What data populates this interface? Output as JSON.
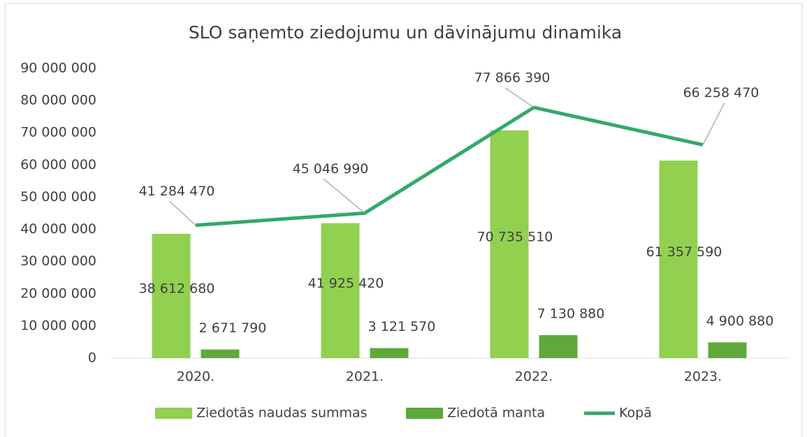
{
  "chart_data": {
    "type": "bar",
    "title": "SLO saņemto ziedojumu un dāvinājumu dinamika",
    "categories": [
      "2020.",
      "2021.",
      "2022.",
      "2023."
    ],
    "series": [
      {
        "name": "Ziedotās naudas summas",
        "color": "#92d050",
        "values": [
          38612680,
          41925420,
          70735510,
          61357590
        ],
        "value_labels": [
          "38 612 680",
          "41 925 420",
          "70 735 510",
          "61 357 590"
        ]
      },
      {
        "name": "Ziedotā manta",
        "color": "#5fa83c",
        "values": [
          2671790,
          3121570,
          7130880,
          4900880
        ],
        "value_labels": [
          "2 671 790",
          "3 121 570",
          "7 130 880",
          "4 900 880"
        ]
      },
      {
        "name": "Kopā",
        "type": "line",
        "color": "#33a86a",
        "values": [
          41284470,
          45046990,
          77866390,
          66258470
        ],
        "value_labels": [
          "41 284 470",
          "45 046 990",
          "77 866 390",
          "66 258 470"
        ]
      }
    ],
    "ylim": [
      0,
      90000000
    ],
    "yticks": [
      0,
      {
        "value": 10000000,
        "label": "10 000 000"
      },
      {
        "value": 20000000,
        "label": "20 000 000"
      },
      {
        "value": 30000000,
        "label": "30 000 000"
      },
      {
        "value": 40000000,
        "label": "40 000 000"
      },
      {
        "value": 50000000,
        "label": "50 000 000"
      },
      {
        "value": 60000000,
        "label": "60 000 000"
      },
      {
        "value": 70000000,
        "label": "70 000 000"
      },
      {
        "value": 80000000,
        "label": "80 000 000"
      },
      {
        "value": 90000000,
        "label": "90 000 000"
      }
    ],
    "grid": false,
    "legend": "bottom"
  }
}
